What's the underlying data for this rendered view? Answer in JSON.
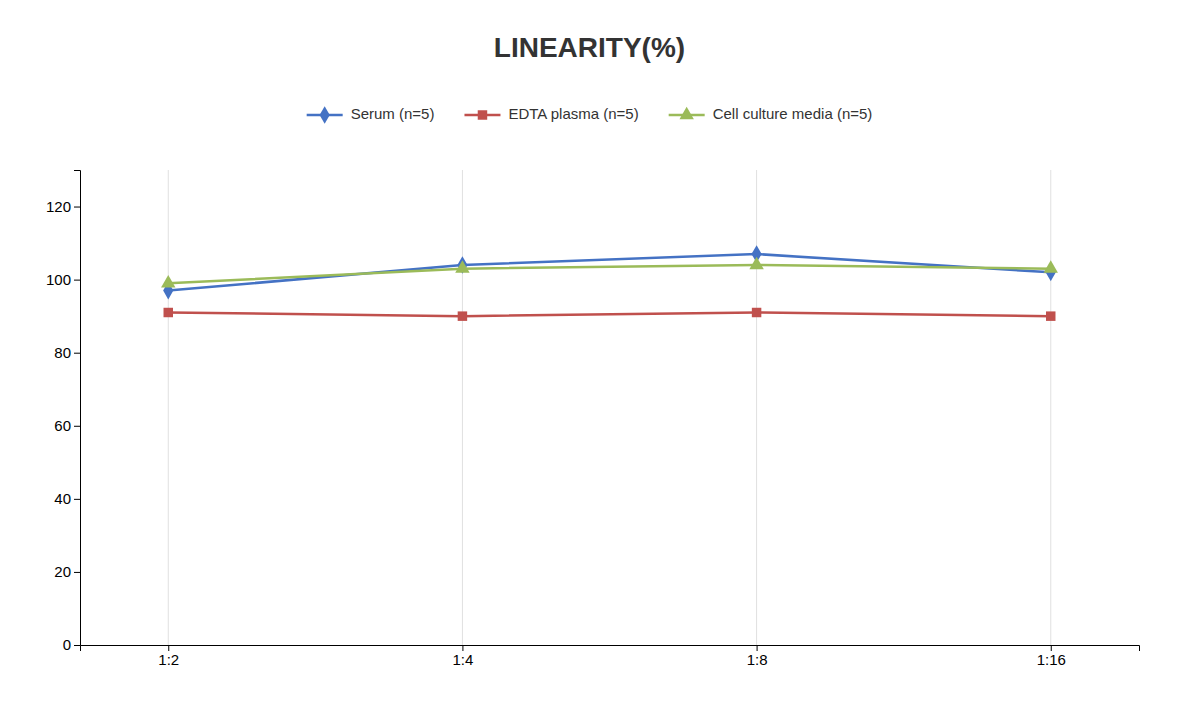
{
  "chart_data": {
    "type": "line",
    "title": "LINEARITY(%)",
    "categories": [
      "1:2",
      "1:4",
      "1:8",
      "1:16"
    ],
    "series": [
      {
        "name": "Serum (n=5)",
        "color": "#4472C4",
        "marker": "diamond",
        "values": [
          97,
          104,
          107,
          102
        ]
      },
      {
        "name": "EDTA plasma (n=5)",
        "color": "#C0504D",
        "marker": "square",
        "values": [
          91,
          90,
          91,
          90
        ]
      },
      {
        "name": "Cell culture media (n=5)",
        "color": "#9BBB59",
        "marker": "triangle",
        "values": [
          99,
          103,
          104,
          103
        ]
      }
    ],
    "ylim": [
      0,
      130
    ],
    "yticks": [
      0,
      20,
      40,
      60,
      80,
      100,
      120
    ],
    "grid": true,
    "legend": "top"
  }
}
